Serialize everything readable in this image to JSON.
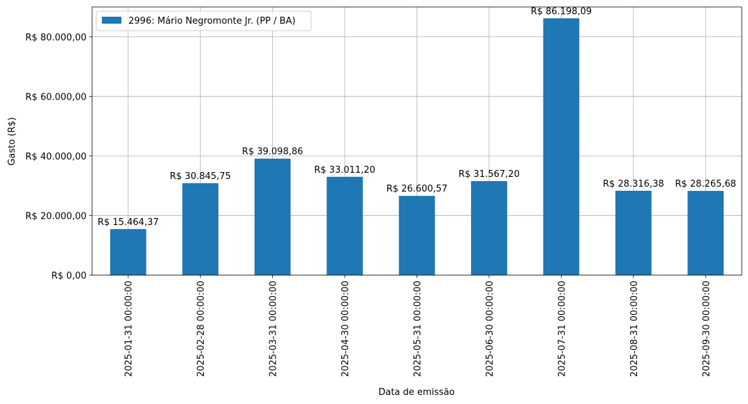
{
  "chart_data": {
    "type": "bar",
    "categories": [
      "2025-01-31 00:00:00",
      "2025-02-28 00:00:00",
      "2025-03-31 00:00:00",
      "2025-04-30 00:00:00",
      "2025-05-31 00:00:00",
      "2025-06-30 00:00:00",
      "2025-07-31 00:00:00",
      "2025-08-31 00:00:00",
      "2025-09-30 00:00:00"
    ],
    "series": [
      {
        "name": "2996: Mário Negromonte Jr. (PP / BA)",
        "color": "#1f77b4",
        "values": [
          15464.37,
          30845.75,
          39098.86,
          33011.2,
          26600.57,
          31567.2,
          86198.09,
          28316.38,
          28265.68
        ],
        "labels": [
          "R$ 15.464,37",
          "R$ 30.845,75",
          "R$ 39.098,86",
          "R$ 33.011,20",
          "R$ 26.600,57",
          "R$ 31.567,20",
          "R$ 86.198,09",
          "R$ 28.316,38",
          "R$ 28.265,68"
        ]
      }
    ],
    "xlabel": "Data de emissão",
    "ylabel": "Gasto (R$)",
    "ylim": [
      0,
      90000
    ],
    "yticks": [
      {
        "value": 0,
        "label": "R$ 0,00"
      },
      {
        "value": 20000,
        "label": "R$ 20.000,00"
      },
      {
        "value": 40000,
        "label": "R$ 40.000,00"
      },
      {
        "value": 60000,
        "label": "R$ 60.000,00"
      },
      {
        "value": 80000,
        "label": "R$ 80.000,00"
      }
    ],
    "grid": true,
    "legend_position": "top-left"
  }
}
